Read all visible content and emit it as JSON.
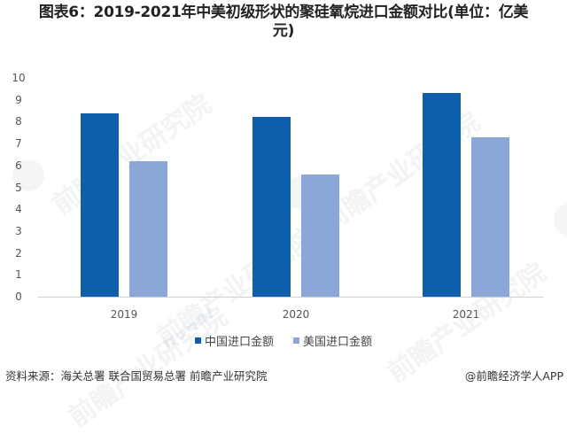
{
  "title": "图表6：2019-2021年中美初级形状的聚硅氧烷进口金额对比(单位：亿美元)",
  "title_line1": "图表6：2019-2021年中美初级形状的聚硅氧烷进口金额对比(单位：亿美",
  "title_line2": "元)",
  "yaxis": {
    "ticks": [
      "0",
      "1",
      "2",
      "3",
      "4",
      "5",
      "6",
      "7",
      "8",
      "9",
      "10"
    ]
  },
  "xaxis": {
    "ticks": [
      "2019",
      "2020",
      "2021"
    ]
  },
  "legend": {
    "items": [
      {
        "label": "中国进口金额",
        "color": "#0D5EAB"
      },
      {
        "label": "美国进口金额",
        "color": "#8BA7D8"
      }
    ]
  },
  "footer": {
    "source": "资料来源：海关总署 联合国贸易总署 前瞻产业研究院",
    "credit": "@前瞻经济学人APP"
  },
  "watermark": "前瞻产业研究院",
  "colors": {
    "china": "#0D5EAB",
    "usa": "#8BA7D8"
  },
  "chart_data": {
    "type": "bar",
    "title": "图表6：2019-2021年中美初级形状的聚硅氧烷进口金额对比(单位：亿美元)",
    "categories": [
      "2019",
      "2020",
      "2021"
    ],
    "series": [
      {
        "name": "中国进口金额",
        "values": [
          8.4,
          8.2,
          9.3
        ]
      },
      {
        "name": "美国进口金额",
        "values": [
          6.2,
          5.6,
          7.3
        ]
      }
    ],
    "xlabel": "",
    "ylabel": "亿美元",
    "ylim": [
      0,
      10
    ],
    "yticks": [
      0,
      1,
      2,
      3,
      4,
      5,
      6,
      7,
      8,
      9,
      10
    ],
    "grid": false,
    "legend_position": "bottom"
  }
}
